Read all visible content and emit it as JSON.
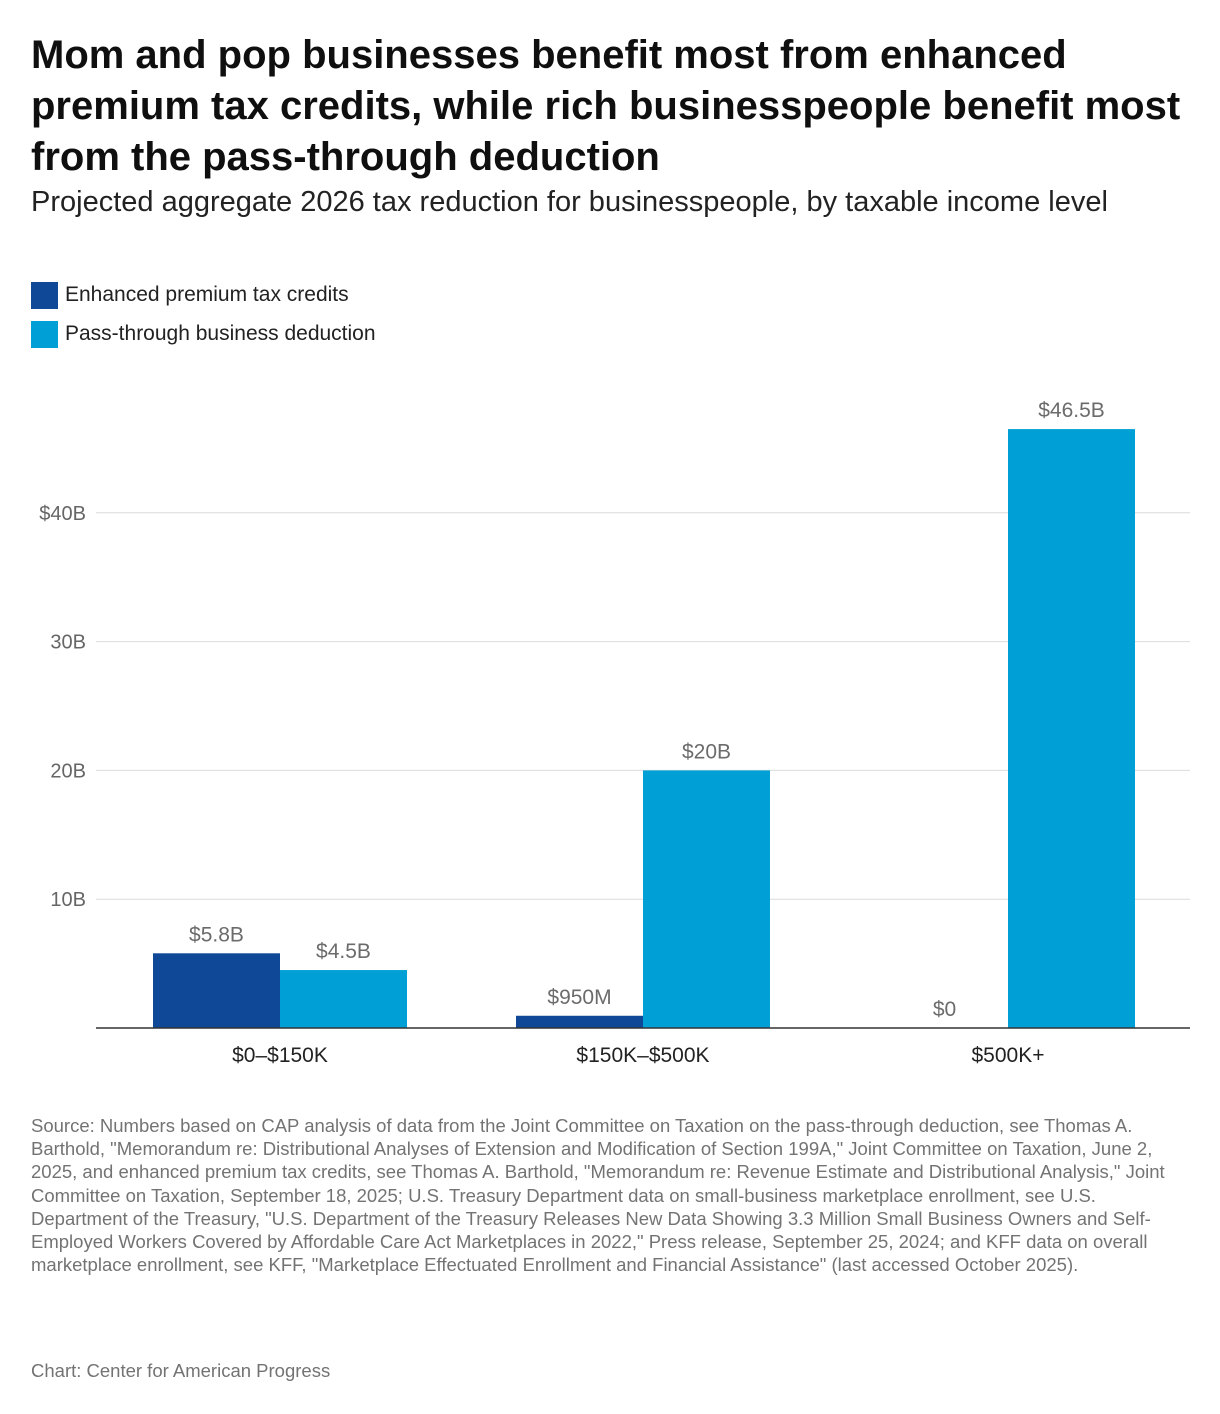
{
  "title": "Mom and pop businesses benefit most from enhanced premium tax credits, while rich businesspeople benefit most from the pass-through deduction",
  "subtitle": "Projected aggregate 2026 tax reduction for businesspeople, by taxable income level",
  "source": "Source: Numbers based on CAP analysis of data from the Joint Committee on Taxation on the pass-through deduction, see Thomas A. Barthold, \"Memorandum re: Distributional Analyses of Extension and Modification of Section 199A,\" Joint Committee on Taxation, June 2, 2025, and enhanced premium tax credits, see Thomas A. Barthold, \"Memorandum re: Revenue Estimate and Distributional Analysis,\" Joint Committee on Taxation, September 18, 2025; U.S. Treasury Department data on small-business marketplace enrollment, see U.S. Department of the Treasury, \"U.S. Department of the Treasury Releases New Data Showing 3.3 Million Small Business Owners and Self-Employed Workers Covered by Affordable Care Act Marketplaces in 2022,\" Press release, September 25, 2024; and KFF data on overall marketplace enrollment, see KFF, \"Marketplace Effectuated Enrollment and Financial Assistance\" (last accessed October 2025).",
  "credit": "Chart: Center for American Progress",
  "chart_data": {
    "type": "bar",
    "title": "Mom and pop businesses benefit most from enhanced premium tax credits, while rich businesspeople benefit most from the pass-through deduction",
    "subtitle": "Projected aggregate 2026 tax reduction for businesspeople, by taxable income level",
    "xlabel": "",
    "ylabel": "",
    "categories": [
      "$0–$150K",
      "$150K–$500K",
      "$500K+"
    ],
    "series": [
      {
        "name": "Enhanced premium tax credits",
        "color": "#0f4896",
        "values": [
          5.8,
          0.95,
          0
        ],
        "labels": [
          "$5.8B",
          "$950M",
          "$0"
        ]
      },
      {
        "name": "Pass-through business deduction",
        "color": "#00a0d6",
        "values": [
          4.5,
          20,
          46.5
        ],
        "labels": [
          "$4.5B",
          "$20B",
          "$46.5B"
        ]
      }
    ],
    "ylim": [
      0,
      50
    ],
    "yticks": [
      10,
      20,
      30,
      40
    ],
    "ytick_labels": [
      "10B",
      "20B",
      "30B",
      "$40B"
    ],
    "grid": true,
    "legend_position": "top-left"
  }
}
